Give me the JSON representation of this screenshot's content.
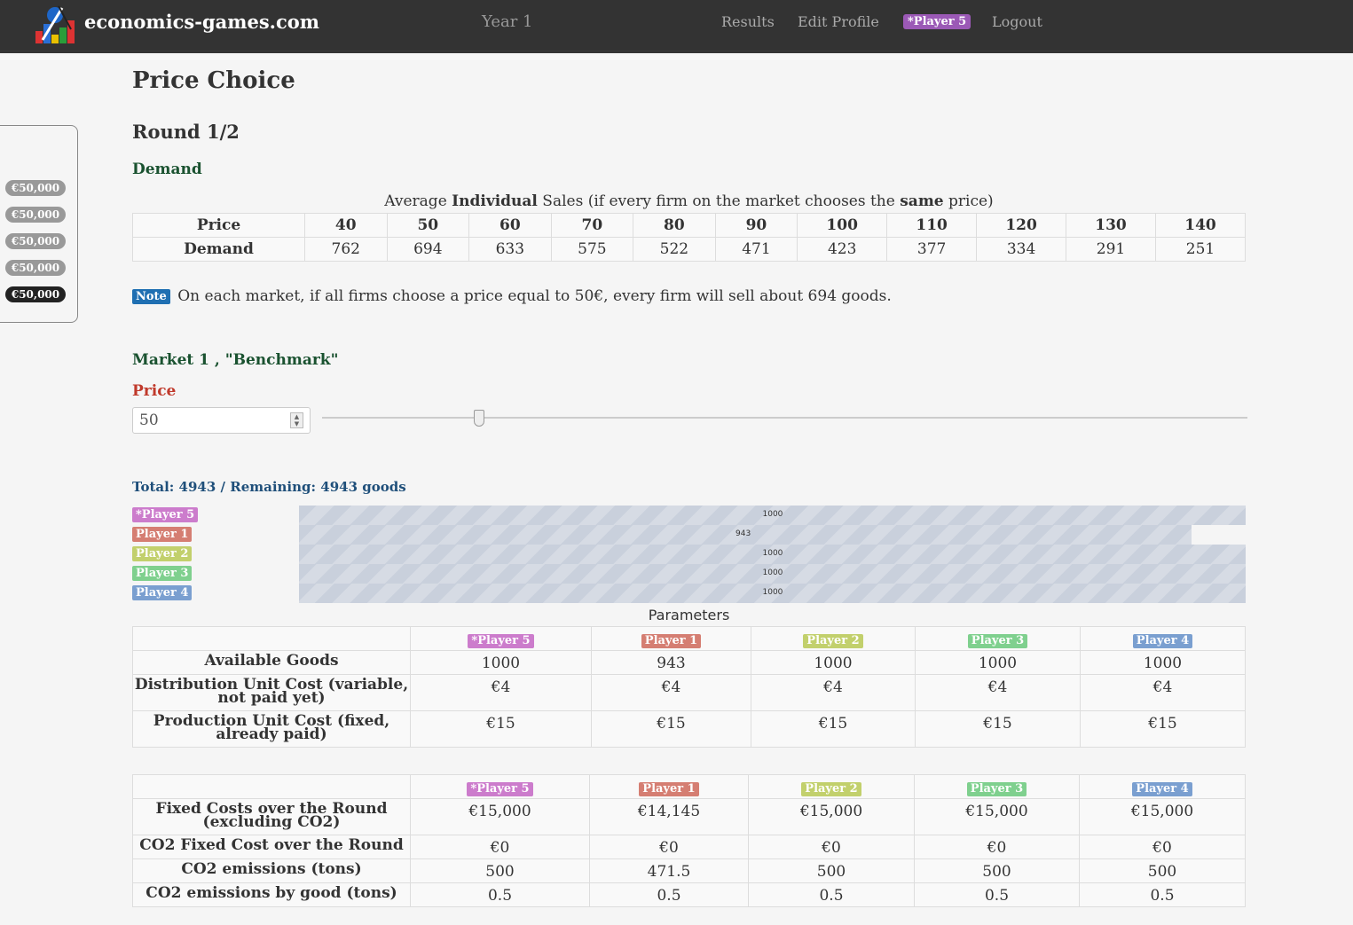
{
  "navbar": {
    "brand": "economics-games.com",
    "year": "Year 1",
    "links": [
      "Results",
      "Edit Profile"
    ],
    "player_badge": "*Player 5",
    "logout": "Logout"
  },
  "sidebar": {
    "amounts": [
      "€50,000",
      "€50,000",
      "€50,000",
      "€50,000",
      "€50,000"
    ]
  },
  "page": {
    "title": "Price Choice",
    "round": "Round 1/2",
    "demand_heading": "Demand"
  },
  "demand": {
    "caption_pre": "Average ",
    "caption_b1": "Individual",
    "caption_mid": " Sales (if every firm on the market chooses the ",
    "caption_b2": "same",
    "caption_post": " price)",
    "row_labels": [
      "Price",
      "Demand"
    ],
    "prices": [
      "40",
      "50",
      "60",
      "70",
      "80",
      "90",
      "100",
      "110",
      "120",
      "130",
      "140"
    ],
    "demands": [
      "762",
      "694",
      "633",
      "575",
      "522",
      "471",
      "423",
      "377",
      "334",
      "291",
      "251"
    ]
  },
  "note": {
    "badge": "Note",
    "text": "On each market, if all firms choose a price equal to 50€, every firm will sell about 694 goods."
  },
  "market": {
    "title": "Market 1 , \"Benchmark\"",
    "price_label": "Price",
    "price_value": "50",
    "slider_value": 0.17,
    "total_line": "Total: 4943 / Remaining: 4943 goods"
  },
  "goods_bars": [
    {
      "player": "*Player 5",
      "value": 1000,
      "label": "1000",
      "color": "#cc7ccc"
    },
    {
      "player": "Player 1",
      "value": 943,
      "label": "943",
      "color": "#d57e72"
    },
    {
      "player": "Player 2",
      "value": 1000,
      "label": "1000",
      "color": "#c2d06c"
    },
    {
      "player": "Player 3",
      "value": 1000,
      "label": "1000",
      "color": "#7fd08e"
    },
    {
      "player": "Player 4",
      "value": 1000,
      "label": "1000",
      "color": "#7a9fd0"
    }
  ],
  "parameters": {
    "caption": "Parameters",
    "players": [
      "*Player 5",
      "Player 1",
      "Player 2",
      "Player 3",
      "Player 4"
    ],
    "rows": [
      {
        "label": "Available Goods",
        "values": [
          "1000",
          "943",
          "1000",
          "1000",
          "1000"
        ]
      },
      {
        "label": "Distribution Unit Cost (variable, not paid yet)",
        "values": [
          "€4",
          "€4",
          "€4",
          "€4",
          "€4"
        ]
      },
      {
        "label": "Production Unit Cost (fixed, already paid)",
        "values": [
          "€15",
          "€15",
          "€15",
          "€15",
          "€15"
        ]
      }
    ]
  },
  "costs": {
    "players": [
      "*Player 5",
      "Player 1",
      "Player 2",
      "Player 3",
      "Player 4"
    ],
    "rows": [
      {
        "label": "Fixed Costs over the Round (excluding CO2)",
        "values": [
          "€15,000",
          "€14,145",
          "€15,000",
          "€15,000",
          "€15,000"
        ]
      },
      {
        "label": "CO2 Fixed Cost over the Round",
        "values": [
          "€0",
          "€0",
          "€0",
          "€0",
          "€0"
        ]
      },
      {
        "label": "CO2 emissions (tons)",
        "values": [
          "500",
          "471.5",
          "500",
          "500",
          "500"
        ]
      },
      {
        "label": "CO2 emissions by good (tons)",
        "values": [
          "0.5",
          "0.5",
          "0.5",
          "0.5",
          "0.5"
        ]
      }
    ]
  }
}
